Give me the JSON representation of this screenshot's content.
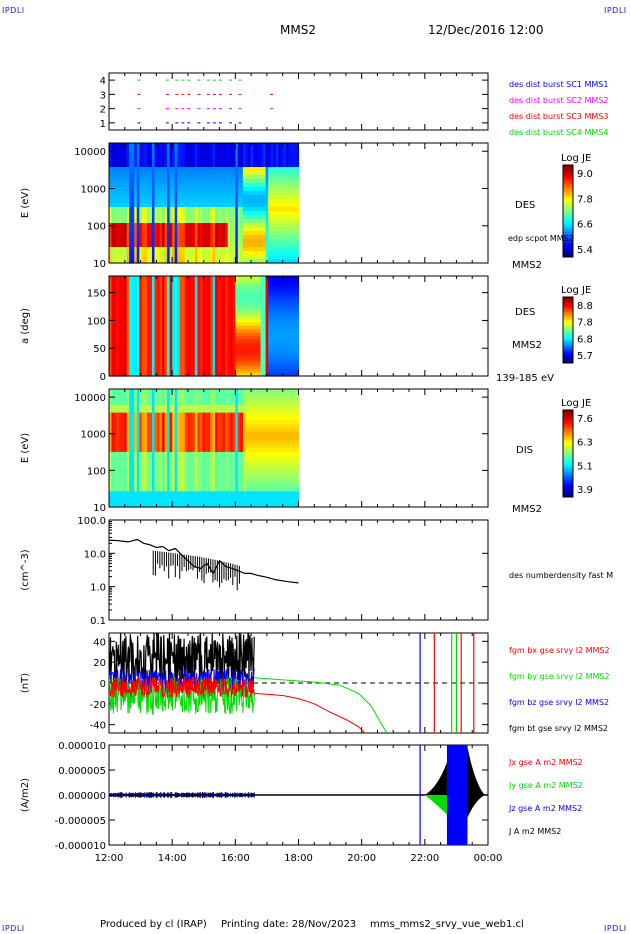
{
  "header": {
    "logo_left": "IPDLI",
    "logo_right": "IPDLI",
    "mission": "MMS2",
    "date": "12/Dec/2016 12:00"
  },
  "footer": {
    "produced_by": "Produced by cl (IRAP)",
    "printing_date": "Printing date: 28/Nov/2023",
    "product": "mms_mms2_srvy_vue_web1.cl",
    "logo_left": "IPDLI",
    "logo_right": "IPDLI"
  },
  "time_axis": {
    "ticks": [
      "12:00",
      "14:00",
      "16:00",
      "18:00",
      "20:00",
      "22:00",
      "00:00"
    ],
    "range_hours": [
      12,
      24
    ]
  },
  "colors": {
    "blue": "#0000ff",
    "magenta": "#ff00ff",
    "red": "#ff0000",
    "green": "#00dd00",
    "black": "#000000"
  },
  "chart_data": [
    {
      "type": "scatter",
      "id": "burst",
      "yticks": [
        "1",
        "2",
        "3",
        "4"
      ],
      "ylim": [
        0.5,
        4.5
      ],
      "legend": [
        "des dist burst SC1 MMS1",
        "des dist burst SC2 MMS2",
        "des dist burst SC3 MMS3",
        "des dist burst SC4 MMS4"
      ],
      "series": [
        {
          "level": 1,
          "color": "blue",
          "intervals": [
            [
              12.9,
              13.0
            ],
            [
              13.8,
              13.9
            ],
            [
              14.1,
              14.6
            ],
            [
              14.8,
              14.9
            ],
            [
              15.1,
              15.6
            ],
            [
              15.8,
              15.9
            ],
            [
              16.1,
              16.2
            ]
          ]
        },
        {
          "level": 2,
          "color": "magenta",
          "intervals": [
            [
              12.9,
              13.0
            ],
            [
              13.8,
              13.9
            ],
            [
              14.1,
              14.6
            ],
            [
              14.8,
              14.9
            ],
            [
              15.1,
              15.6
            ],
            [
              15.8,
              15.9
            ],
            [
              16.1,
              16.2
            ],
            [
              17.1,
              17.2
            ]
          ]
        },
        {
          "level": 3,
          "color": "red",
          "intervals": [
            [
              12.9,
              13.0
            ],
            [
              13.8,
              13.9
            ],
            [
              14.1,
              14.6
            ],
            [
              14.8,
              14.9
            ],
            [
              15.1,
              15.6
            ],
            [
              15.8,
              15.9
            ],
            [
              16.1,
              16.2
            ],
            [
              17.1,
              17.2
            ]
          ]
        },
        {
          "level": 4,
          "color": "green",
          "intervals": [
            [
              12.9,
              13.0
            ],
            [
              13.8,
              13.9
            ],
            [
              14.1,
              14.6
            ],
            [
              14.8,
              14.9
            ],
            [
              15.1,
              15.6
            ],
            [
              15.8,
              15.9
            ],
            [
              16.1,
              16.2
            ]
          ]
        }
      ]
    },
    {
      "type": "heatmap",
      "id": "des-energy",
      "ylabel": "E (eV)",
      "yscale": "log",
      "yticks": [
        "10",
        "100",
        "1000",
        "10000"
      ],
      "right_labels": [
        "DES",
        "edp scpot MMS2",
        "MMS2"
      ],
      "colorbar": {
        "title": "Log JE",
        "ticks": [
          "9.0",
          "7.8",
          "6.6",
          "5.4"
        ]
      },
      "data_end_hour": 18.0
    },
    {
      "type": "heatmap",
      "id": "des-pitch",
      "ylabel": "a (deg)",
      "yticks": [
        "0",
        "50",
        "100",
        "150"
      ],
      "ylim": [
        0,
        180
      ],
      "right_labels": [
        "DES",
        "MMS2",
        "139-185 eV"
      ],
      "colorbar": {
        "title": "Log JE",
        "ticks": [
          "8.8",
          "7.8",
          "6.8",
          "5.7"
        ]
      },
      "data_end_hour": 18.0
    },
    {
      "type": "heatmap",
      "id": "dis-energy",
      "ylabel": "E (eV)",
      "yscale": "log",
      "yticks": [
        "10",
        "100",
        "1000",
        "10000"
      ],
      "right_labels": [
        "DIS",
        "MMS2"
      ],
      "colorbar": {
        "title": "Log JE",
        "ticks": [
          "7.6",
          "6.3",
          "5.1",
          "3.9"
        ]
      },
      "data_end_hour": 18.0
    },
    {
      "type": "line",
      "id": "density",
      "ylabel": "(cm^-3)",
      "yscale": "log",
      "yticks": [
        "0.1",
        "1.0",
        "10.0",
        "100.0"
      ],
      "ylim": [
        0.1,
        100
      ],
      "legend": [
        "des numberdensity fast M"
      ],
      "x": [
        12.0,
        12.3,
        12.6,
        12.9,
        13.1,
        13.3,
        13.5,
        13.7,
        13.9,
        14.1,
        14.3,
        14.5,
        14.7,
        14.9,
        15.1,
        15.3,
        15.5,
        15.7,
        15.9,
        16.1,
        16.3,
        16.5,
        16.7,
        16.9,
        17.1,
        17.3,
        17.5,
        17.7,
        18.0
      ],
      "y": [
        25,
        24,
        22,
        26,
        20,
        18,
        15,
        16,
        12,
        14,
        9,
        6,
        4,
        3.5,
        5,
        2.5,
        6,
        4,
        3.5,
        3,
        2.5,
        2.5,
        2.2,
        2,
        1.8,
        1.6,
        1.5,
        1.4,
        1.3
      ]
    },
    {
      "type": "line",
      "id": "fgm-b",
      "ylabel": "(nT)",
      "yticks": [
        "-40",
        "-20",
        "0",
        "20",
        "40"
      ],
      "ylim": [
        -48,
        48
      ],
      "legend": [
        "fgm bx gse srvy l2 MMS2",
        "fgm by gse srvy l2 MMS2",
        "fgm bz gse srvy l2 MMS2",
        "fgm bt gse srvy l2 MMS2"
      ],
      "series": [
        {
          "name": "fgm bx gse srvy l2 MMS2",
          "color": "red",
          "x": [
            16.6,
            17.5,
            18.0,
            18.5,
            19.0,
            19.5,
            19.9,
            20.1
          ],
          "y": [
            -10,
            -12,
            -15,
            -20,
            -28,
            -35,
            -42,
            -48
          ]
        },
        {
          "name": "fgm by gse srvy l2 MMS2",
          "color": "green",
          "x": [
            16.6,
            17.5,
            18.5,
            19.3,
            19.9,
            20.3,
            20.6,
            20.8
          ],
          "y": [
            5,
            3,
            1,
            -2,
            -10,
            -22,
            -38,
            -48
          ]
        }
      ]
    },
    {
      "type": "line",
      "id": "current",
      "ylabel": "(A/m2)",
      "yticks": [
        "0.000010",
        "0.000005",
        "0.000000",
        "-0.000005",
        "-0.000010"
      ],
      "ylim": [
        -1e-05,
        1e-05
      ],
      "legend": [
        "Jx gse A m2 MMS2",
        "Jy gse A m2 MMS2",
        "Jz gse A m2 MMS2",
        "J A m2 MMS2"
      ]
    }
  ]
}
